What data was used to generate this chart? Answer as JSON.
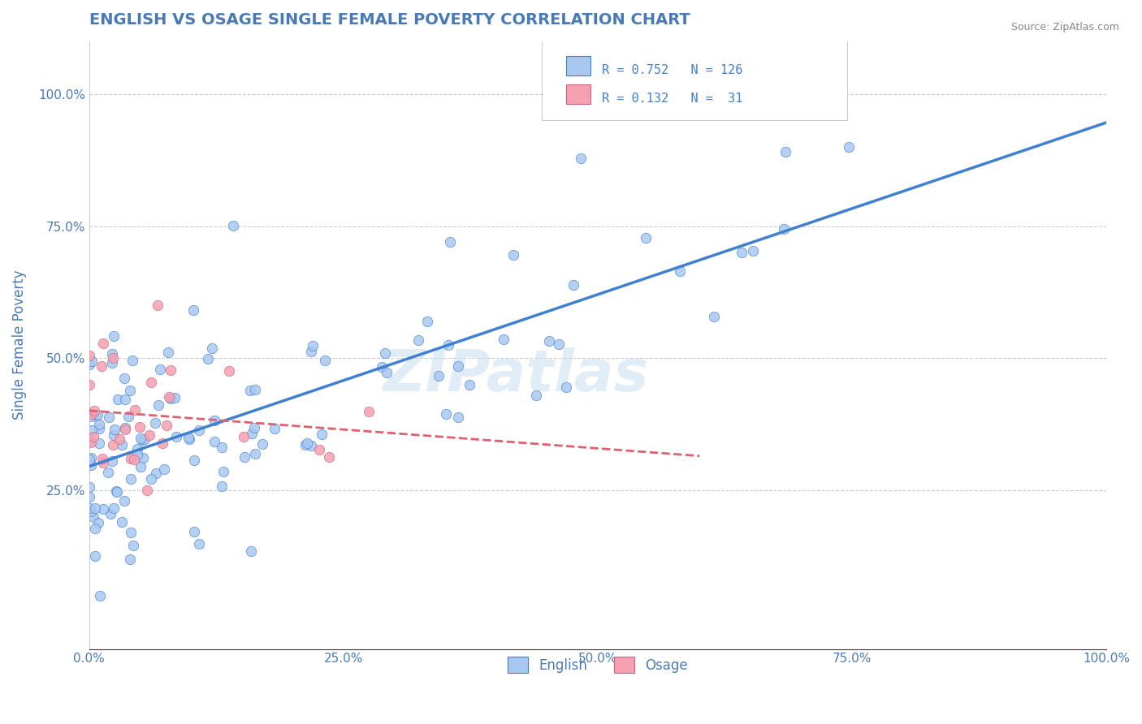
{
  "title": "ENGLISH VS OSAGE SINGLE FEMALE POVERTY CORRELATION CHART",
  "source": "Source: ZipAtlas.com",
  "xlabel": "",
  "ylabel": "Single Female Poverty",
  "xlim": [
    0,
    1
  ],
  "ylim": [
    -0.05,
    1.1
  ],
  "xticks": [
    0,
    0.25,
    0.5,
    0.75,
    1.0
  ],
  "xticklabels": [
    "0.0%",
    "25.0%",
    "50.0%",
    "75.0%",
    "100.0%"
  ],
  "yticks": [
    0.25,
    0.5,
    0.75,
    1.0
  ],
  "yticklabels": [
    "25.0%",
    "50.0%",
    "75.0%",
    "100.0%"
  ],
  "english_color": "#a8c8f0",
  "osage_color": "#f4a0b0",
  "trend_english_color": "#4080d0",
  "trend_osage_color": "#e06070",
  "english_R": 0.752,
  "english_N": 126,
  "osage_R": 0.132,
  "osage_N": 31,
  "legend_english": "English",
  "legend_osage": "Osage",
  "watermark": "ZIPatlas",
  "background_color": "#ffffff",
  "grid_color": "#cccccc",
  "title_color": "#4a7ab5",
  "label_color": "#4a7ab5",
  "tick_color": "#4a7ab5",
  "english_seed": 42,
  "osage_seed": 7
}
